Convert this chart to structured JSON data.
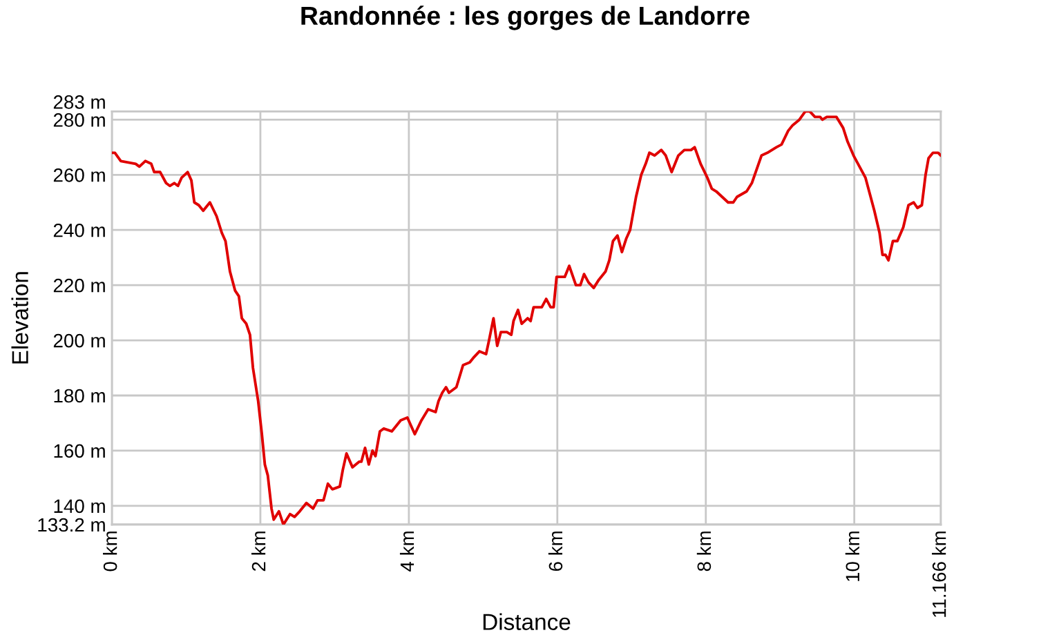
{
  "chart_data": {
    "type": "line",
    "title": "Randonnée : les gorges de Landorre",
    "xlabel": "Distance",
    "ylabel": "Elevation",
    "x": [
      0,
      0.04,
      0.12,
      0.32,
      0.37,
      0.45,
      0.53,
      0.57,
      0.65,
      0.73,
      0.78,
      0.84,
      0.89,
      0.94,
      1.02,
      1.07,
      1.11,
      1.17,
      1.23,
      1.32,
      1.41,
      1.48,
      1.53,
      1.59,
      1.66,
      1.71,
      1.75,
      1.81,
      1.86,
      1.9,
      1.97,
      2.02,
      2.06,
      2.1,
      2.15,
      2.18,
      2.25,
      2.31,
      2.4,
      2.46,
      2.53,
      2.62,
      2.71,
      2.77,
      2.85,
      2.91,
      2.97,
      3.07,
      3.11,
      3.16,
      3.24,
      3.33,
      3.36,
      3.41,
      3.46,
      3.51,
      3.55,
      3.61,
      3.66,
      3.77,
      3.89,
      3.98,
      4.08,
      4.17,
      4.26,
      4.36,
      4.4,
      4.45,
      4.5,
      4.54,
      4.64,
      4.73,
      4.82,
      4.88,
      4.95,
      5.04,
      5.08,
      5.14,
      5.19,
      5.24,
      5.32,
      5.38,
      5.41,
      5.47,
      5.52,
      5.6,
      5.64,
      5.68,
      5.79,
      5.85,
      5.91,
      5.95,
      5.99,
      6.1,
      6.16,
      6.25,
      6.31,
      6.36,
      6.42,
      6.49,
      6.56,
      6.65,
      6.7,
      6.75,
      6.81,
      6.87,
      6.93,
      6.98,
      7.06,
      7.13,
      7.19,
      7.24,
      7.31,
      7.4,
      7.46,
      7.54,
      7.63,
      7.71,
      7.8,
      7.85,
      7.93,
      8.02,
      8.08,
      8.14,
      8.3,
      8.37,
      8.42,
      8.55,
      8.62,
      8.75,
      8.83,
      8.95,
      9.02,
      9.11,
      9.17,
      9.26,
      9.34,
      9.4,
      9.47,
      9.54,
      9.57,
      9.63,
      9.76,
      9.85,
      9.91,
      9.99,
      10.07,
      10.15,
      10.21,
      10.27,
      10.34,
      10.38,
      10.42,
      10.46,
      10.52,
      10.58,
      10.66,
      10.73,
      10.8,
      10.85,
      10.91,
      10.96,
      11.0,
      11.06,
      11.13,
      11.166
    ],
    "series": [
      {
        "color": "#e00000",
        "values": [
          268,
          268,
          265,
          264,
          263,
          265,
          264,
          261,
          261,
          257,
          256,
          257,
          256,
          259,
          261,
          258,
          250,
          249,
          247,
          250,
          245,
          239,
          236,
          225,
          218,
          216,
          208,
          206,
          202,
          190,
          178,
          166,
          155,
          151,
          139,
          135,
          138,
          133.2,
          137,
          136,
          138,
          141,
          139,
          142,
          142,
          148,
          146,
          147,
          153,
          159,
          154,
          156,
          156,
          161,
          155,
          160,
          158,
          167,
          168,
          167,
          171,
          172,
          166,
          171,
          175,
          174,
          178,
          181,
          183,
          181,
          183,
          191,
          192,
          194,
          196,
          195,
          200,
          208,
          198,
          203,
          203,
          202,
          207,
          211,
          206,
          208,
          207,
          212,
          212,
          215,
          212,
          212,
          223,
          223,
          227,
          220,
          220,
          224,
          221,
          219,
          222,
          225,
          229,
          236,
          238,
          232,
          237,
          240,
          252,
          260,
          264,
          268,
          267,
          269,
          267,
          261,
          267,
          269,
          269,
          270,
          264,
          259,
          255,
          254,
          250,
          250,
          252,
          254,
          257,
          267,
          268,
          270,
          271,
          276,
          278,
          280,
          283,
          283,
          281,
          281,
          280,
          281,
          281,
          277,
          272,
          267,
          263,
          259,
          253,
          247,
          239,
          231,
          231,
          229,
          236,
          236,
          241,
          249,
          250,
          248,
          249,
          260,
          266,
          268,
          268,
          267
        ]
      }
    ],
    "xlim": [
      0,
      11.166
    ],
    "xticks": [
      {
        "value": 0,
        "label": "0 km"
      },
      {
        "value": 2,
        "label": "2 km"
      },
      {
        "value": 4,
        "label": "4 km"
      },
      {
        "value": 6,
        "label": "6 km"
      },
      {
        "value": 8,
        "label": "8 km"
      },
      {
        "value": 10,
        "label": "10 km"
      },
      {
        "value": 11.166,
        "label": "11.166 km"
      }
    ],
    "ylim": [
      133.2,
      283
    ],
    "yticks": [
      {
        "value": 133.2,
        "label": "133.2 m"
      },
      {
        "value": 140,
        "label": "140 m"
      },
      {
        "value": 160,
        "label": "160 m"
      },
      {
        "value": 180,
        "label": "180 m"
      },
      {
        "value": 200,
        "label": "200 m"
      },
      {
        "value": 220,
        "label": "220 m"
      },
      {
        "value": 240,
        "label": "240 m"
      },
      {
        "value": 260,
        "label": "260 m"
      },
      {
        "value": 280,
        "label": "280 m"
      },
      {
        "value": 283,
        "label": "283 m"
      }
    ],
    "grid": true
  }
}
